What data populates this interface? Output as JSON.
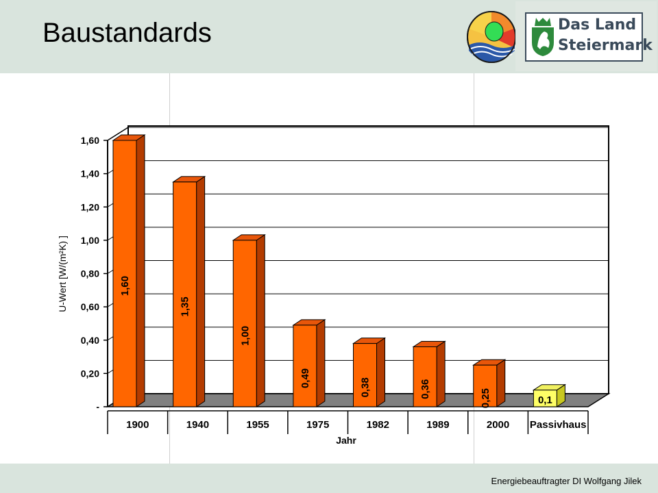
{
  "slide": {
    "title": "Baustandards",
    "footer": "Energiebeauftragter DI Wolfgang Jilek"
  },
  "logos": {
    "land_line1": "Das Land",
    "land_line2": "Steiermark"
  },
  "colors": {
    "bar_front": "#ff6600",
    "bar_side": "#b33c00",
    "bar_top": "#e8560a",
    "passiv_front": "#ffff66",
    "passiv_side": "#c8c820",
    "floor": "#808080"
  },
  "chart_data": {
    "type": "bar",
    "categories": [
      "1900",
      "1940",
      "1955",
      "1975",
      "1982",
      "1989",
      "2000",
      "Passivhaus"
    ],
    "values": [
      1.6,
      1.35,
      1.0,
      0.49,
      0.38,
      0.36,
      0.25,
      0.1
    ],
    "value_labels": [
      "1,60",
      "1,35",
      "1,00",
      "0,49",
      "0,38",
      "0,36",
      "0,25",
      "0,1"
    ],
    "xlabel": "Jahr",
    "ylabel": "U-Wert [W/(m²K) ]",
    "ylim": [
      0,
      1.6
    ],
    "yticks": [
      "-",
      "0,20",
      "0,40",
      "0,60",
      "0,80",
      "1,00",
      "1,20",
      "1,40",
      "1,60"
    ],
    "grid": true,
    "three_d": true
  }
}
